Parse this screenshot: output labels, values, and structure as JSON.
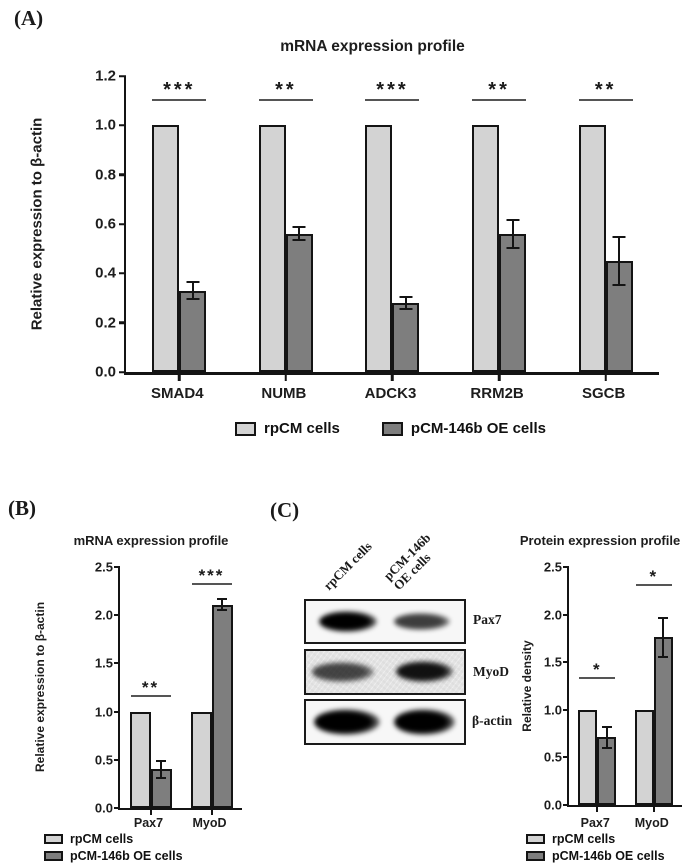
{
  "colors": {
    "light_bar": "#d3d3d3",
    "dark_bar": "#7e7e7e",
    "outline": "#141414",
    "background": "#ffffff"
  },
  "panels": {
    "a_label": "(A)",
    "b_label": "(B)",
    "c_label": "(C)"
  },
  "western_blot": {
    "lane_labels": [
      "rpCM cells",
      "pCM-146b OE cells"
    ],
    "rows": [
      {
        "label": "Pax7",
        "band_intensities": [
          1.0,
          0.75
        ]
      },
      {
        "label": "MyoD",
        "band_intensities": [
          0.7,
          0.92
        ]
      },
      {
        "label": "β-actin",
        "band_intensities": [
          1.0,
          1.0
        ]
      }
    ]
  },
  "chart_data": [
    {
      "id": "panel-a-mrna",
      "type": "bar",
      "title": "mRNA expression profile",
      "xlabel": "",
      "ylabel": "Relative expression to β-actin",
      "categories": [
        "SMAD4",
        "NUMB",
        "ADCK3",
        "RRM2B",
        "SGCB"
      ],
      "series": [
        {
          "name": "rpCM cells",
          "values": [
            1.0,
            1.0,
            1.0,
            1.0,
            1.0
          ],
          "errors": [
            0,
            0,
            0,
            0,
            0
          ]
        },
        {
          "name": "pCM-146b OE cells",
          "values": [
            0.33,
            0.56,
            0.28,
            0.56,
            0.45
          ],
          "errors": [
            0.04,
            0.03,
            0.03,
            0.06,
            0.1
          ]
        }
      ],
      "significance": [
        {
          "label": "***",
          "line_y": 1.1
        },
        {
          "label": "**",
          "line_y": 1.1
        },
        {
          "label": "***",
          "line_y": 1.1
        },
        {
          "label": "**",
          "line_y": 1.1
        },
        {
          "label": "**",
          "line_y": 1.1
        }
      ],
      "ylim": [
        0,
        1.2
      ],
      "yticks": [
        "0.0",
        "0.2",
        "0.4",
        "0.6",
        "0.8",
        "1.0",
        "1.2"
      ],
      "grid": false,
      "legend_position": "bottom-horizontal"
    },
    {
      "id": "panel-b-mrna",
      "type": "bar",
      "title": "mRNA expression profile",
      "xlabel": "",
      "ylabel": "Relative expression to β-actin",
      "categories": [
        "Pax7",
        "MyoD"
      ],
      "series": [
        {
          "name": "rpCM cells",
          "values": [
            1.0,
            1.0
          ],
          "errors": [
            0,
            0
          ]
        },
        {
          "name": "pCM-146b OE cells",
          "values": [
            0.4,
            2.11
          ],
          "errors": [
            0.1,
            0.07
          ]
        }
      ],
      "significance": [
        {
          "label": "**",
          "line_y": 1.15
        },
        {
          "label": "***",
          "line_y": 2.31
        }
      ],
      "ylim": [
        0,
        2.5
      ],
      "yticks": [
        "0.0",
        "0.5",
        "1.0",
        "1.5",
        "2.0",
        "2.5"
      ],
      "grid": false,
      "legend_position": "bottom-vertical"
    },
    {
      "id": "panel-c-protein",
      "type": "bar",
      "title": "Protein expression profile",
      "xlabel": "",
      "ylabel": "Relative density",
      "categories": [
        "Pax7",
        "MyoD"
      ],
      "series": [
        {
          "name": "rpCM cells",
          "values": [
            1.0,
            1.0
          ],
          "errors": [
            0,
            0
          ]
        },
        {
          "name": "pCM-146b OE cells",
          "values": [
            0.71,
            1.76
          ],
          "errors": [
            0.12,
            0.22
          ]
        }
      ],
      "significance": [
        {
          "label": "*",
          "line_y": 1.32
        },
        {
          "label": "*",
          "line_y": 2.3
        }
      ],
      "ylim": [
        0,
        2.5
      ],
      "yticks": [
        "0.0",
        "0.5",
        "1.0",
        "1.5",
        "2.0",
        "2.5"
      ],
      "grid": false,
      "legend_position": "bottom-vertical"
    }
  ]
}
